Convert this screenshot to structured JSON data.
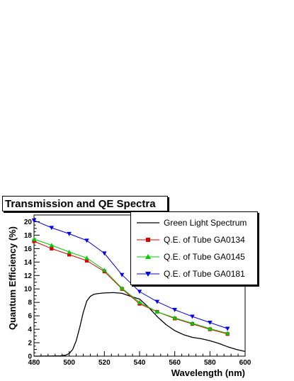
{
  "chart_data": {
    "type": "line",
    "title": "Transmission and QE Spectra",
    "xlabel": "Wavelength (nm)",
    "ylabel": "Quantum Efficiency (%)",
    "xlim": [
      480,
      600
    ],
    "ylim": [
      0,
      21
    ],
    "x_ticks": [
      480,
      500,
      520,
      540,
      560,
      580,
      600
    ],
    "y_ticks": [
      0,
      2,
      4,
      6,
      8,
      10,
      12,
      14,
      16,
      18,
      20
    ],
    "x_tick_labels": [
      "480",
      "500",
      "520",
      "540",
      "560",
      "580",
      "600"
    ],
    "y_tick_labels": [
      "0",
      "2",
      "4",
      "6",
      "8",
      "10",
      "12",
      "14",
      "16",
      "18",
      "20"
    ],
    "legend_position": "top-right",
    "series": [
      {
        "name": "Green Light Spectrum",
        "color": "#000000",
        "marker": "none",
        "x": [
          480,
          490,
          495,
          498,
          500,
          502,
          504,
          506,
          508,
          510,
          512,
          514,
          516,
          518,
          520,
          525,
          530,
          535,
          540,
          545,
          550,
          555,
          560,
          565,
          570,
          575,
          580,
          585,
          590,
          595,
          600
        ],
        "y": [
          0.0,
          0.02,
          0.05,
          0.15,
          0.4,
          1.0,
          2.3,
          4.3,
          6.5,
          8.2,
          8.9,
          9.2,
          9.3,
          9.35,
          9.4,
          9.45,
          9.35,
          8.9,
          8.5,
          7.3,
          5.9,
          4.7,
          3.8,
          3.2,
          2.8,
          2.6,
          2.3,
          1.9,
          1.4,
          1.0,
          0.7
        ]
      },
      {
        "name": "Q.E. of Tube GA0134",
        "color": "#dd0000",
        "marker": "square",
        "x": [
          480,
          490,
          500,
          510,
          520,
          530,
          540,
          550,
          560,
          570,
          580,
          590
        ],
        "y": [
          17.1,
          16.0,
          15.1,
          14.2,
          12.6,
          10.0,
          7.8,
          6.6,
          5.6,
          4.8,
          4.0,
          3.3
        ]
      },
      {
        "name": "Q.E. of Tube GA0145",
        "color": "#00cc00",
        "marker": "triangle-up",
        "x": [
          480,
          490,
          500,
          510,
          520,
          530,
          540,
          550,
          560,
          570,
          580,
          590
        ],
        "y": [
          17.4,
          16.5,
          15.5,
          14.6,
          12.8,
          10.1,
          8.0,
          6.6,
          5.7,
          4.9,
          4.1,
          3.4
        ]
      },
      {
        "name": "Q.E. of Tube GA0181",
        "color": "#0000ee",
        "marker": "triangle-down",
        "x": [
          480,
          490,
          500,
          510,
          520,
          530,
          540,
          550,
          560,
          570,
          580,
          590
        ],
        "y": [
          20.2,
          19.1,
          18.2,
          17.2,
          15.3,
          12.1,
          9.6,
          8.1,
          6.9,
          5.9,
          5.0,
          4.1
        ]
      }
    ]
  }
}
